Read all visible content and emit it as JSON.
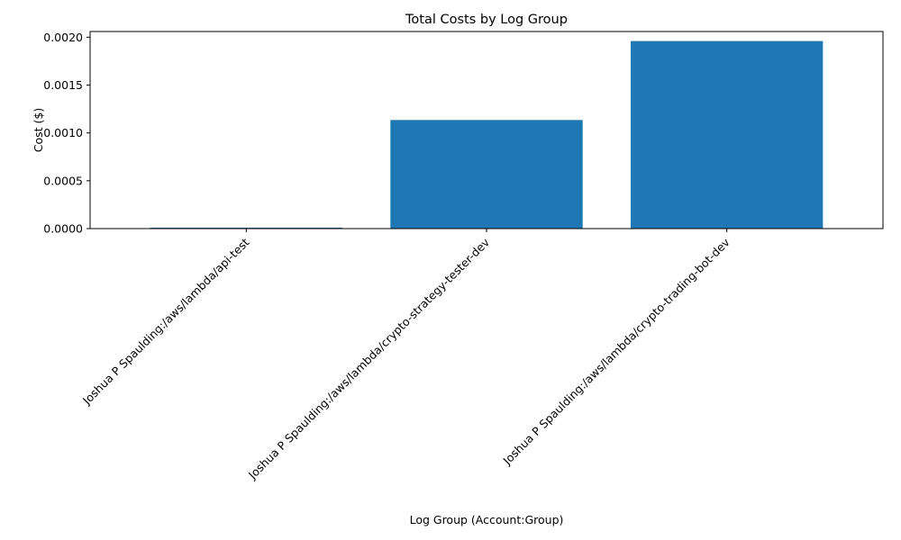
{
  "chart_data": {
    "type": "bar",
    "title": "Total Costs by Log Group",
    "xlabel": "Log Group (Account:Group)",
    "ylabel": "Cost ($)",
    "categories": [
      "Joshua P Spaulding:/aws/lambda/api-test",
      "Joshua P Spaulding:/aws/lambda/crypto-strategy-tester-dev",
      "Joshua P Spaulding:/aws/lambda/crypto-trading-bot-dev"
    ],
    "values": [
      1e-05,
      0.001135,
      0.00196
    ],
    "ylim": [
      0,
      0.00206
    ],
    "yticks": [
      0,
      0.0005,
      0.001,
      0.0015,
      0.002
    ],
    "ytick_labels": [
      "0.0000",
      "0.0005",
      "0.0010",
      "0.0015",
      "0.0020"
    ],
    "bar_color": "#1f77b4",
    "grid": false,
    "legend": "none"
  }
}
